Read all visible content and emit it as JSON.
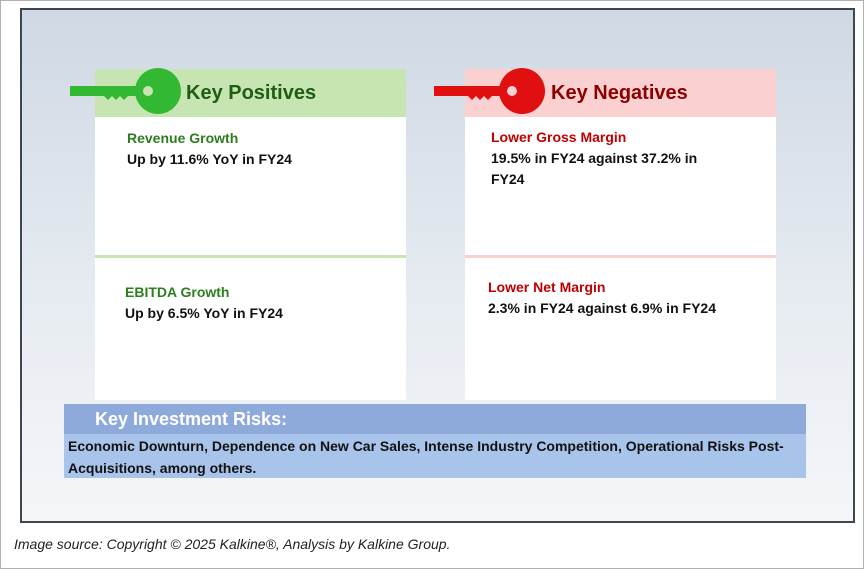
{
  "positives": {
    "title": "Key Positives",
    "items": [
      {
        "title": "Revenue Growth",
        "text": "Up by 11.6% YoY in FY24"
      },
      {
        "title": "EBITDA Growth",
        "text": "Up by 6.5% YoY in FY24"
      }
    ]
  },
  "negatives": {
    "title": "Key Negatives",
    "items": [
      {
        "title": "Lower Gross Margin",
        "text": "19.5% in FY24 against 37.2% in FY24"
      },
      {
        "title": "Lower Net Margin",
        "text": "2.3% in FY24 against 6.9% in FY24"
      }
    ]
  },
  "risks": {
    "title": "Key Investment Risks:",
    "text": "Economic Downturn, Dependence on New Car Sales, Intense Industry Competition, Operational Risks Post-Acquisitions, among others."
  },
  "footer": "Image source: Copyright © 2025 Kalkine®, Analysis by Kalkine Group."
}
